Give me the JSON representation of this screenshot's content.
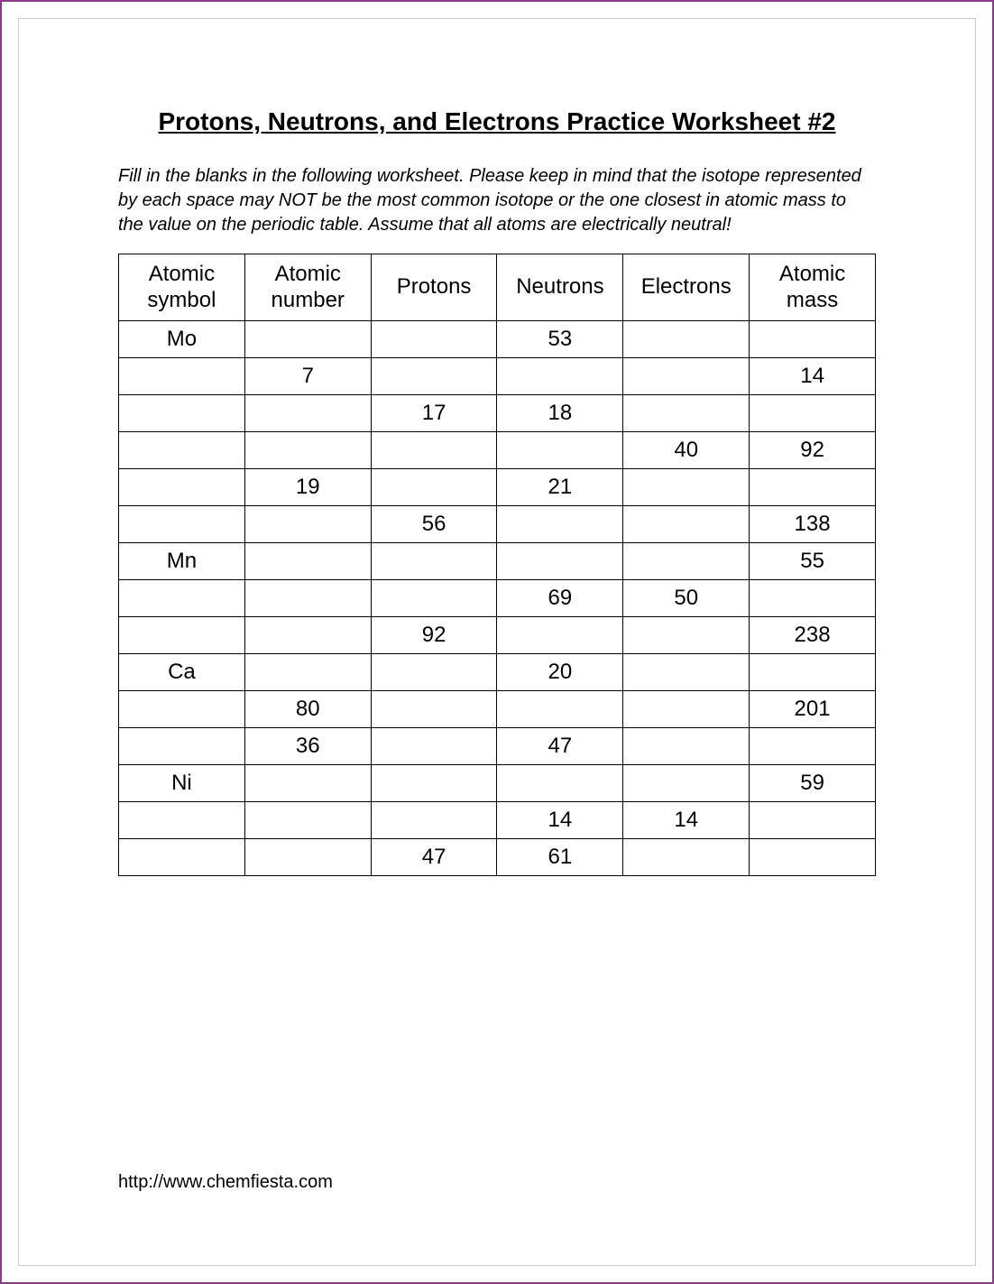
{
  "document": {
    "title": "Protons, Neutrons, and Electrons Practice Worksheet #2",
    "instructions": "Fill in the blanks in the following worksheet.  Please keep in mind that the isotope represented by each space may NOT be the most common isotope or the one closest in atomic mass to the value on the periodic table. Assume that all atoms are electrically neutral!",
    "footer_url": "http://www.chemfiesta.com",
    "border_color": "#8b3a8b",
    "inner_border_color": "#cccccc",
    "table_border_color": "#000000",
    "background_color": "#ffffff",
    "text_color": "#000000",
    "title_fontsize": 28,
    "instructions_fontsize": 20,
    "cell_fontsize": 24,
    "footer_fontsize": 20
  },
  "table": {
    "columns": [
      "Atomic symbol",
      "Atomic number",
      "Protons",
      "Neutrons",
      "Electrons",
      "Atomic mass"
    ],
    "rows": [
      [
        "Mo",
        "",
        "",
        "53",
        "",
        ""
      ],
      [
        "",
        "7",
        "",
        "",
        "",
        "14"
      ],
      [
        "",
        "",
        "17",
        "18",
        "",
        ""
      ],
      [
        "",
        "",
        "",
        "",
        "40",
        "92"
      ],
      [
        "",
        "19",
        "",
        "21",
        "",
        ""
      ],
      [
        "",
        "",
        "56",
        "",
        "",
        "138"
      ],
      [
        "Mn",
        "",
        "",
        "",
        "",
        "55"
      ],
      [
        "",
        "",
        "",
        "69",
        "50",
        ""
      ],
      [
        "",
        "",
        "92",
        "",
        "",
        "238"
      ],
      [
        "Ca",
        "",
        "",
        "20",
        "",
        ""
      ],
      [
        "",
        "80",
        "",
        "",
        "",
        "201"
      ],
      [
        "",
        "36",
        "",
        "47",
        "",
        ""
      ],
      [
        "Ni",
        "",
        "",
        "",
        "",
        "59"
      ],
      [
        "",
        "",
        "",
        "14",
        "14",
        ""
      ],
      [
        "",
        "",
        "47",
        "61",
        "",
        ""
      ]
    ]
  }
}
